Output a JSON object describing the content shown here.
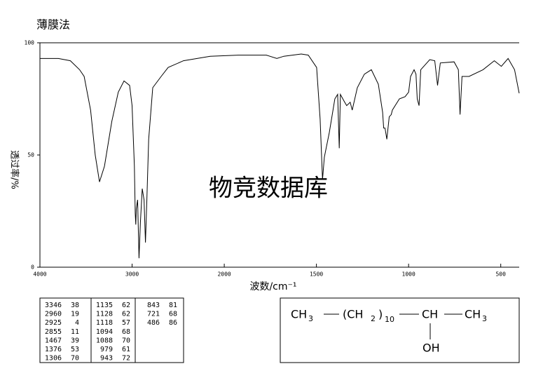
{
  "chart_data": {
    "type": "line",
    "title": "薄膜法",
    "ylabel": "透过率/%",
    "xlabel": "波数/cm⁻¹",
    "xlim": [
      4000,
      400
    ],
    "xticks": [
      4000,
      3000,
      2000,
      1500,
      1000,
      500
    ],
    "x_scale_break": 2000,
    "x_scale_factor": 2,
    "ylim": [
      0,
      100
    ],
    "yticks": [
      0,
      50,
      100
    ],
    "color": "#000000",
    "x": [
      4000,
      3800,
      3670,
      3570,
      3520,
      3450,
      3400,
      3354,
      3300,
      3220,
      3150,
      3088,
      3027,
      3000,
      2975,
      2966,
      2960,
      2955,
      2940,
      2925,
      2910,
      2890,
      2870,
      2855,
      2840,
      2820,
      2776,
      2685,
      2609,
      2442,
      2153,
      1924,
      1772,
      1715,
      1677,
      1582,
      1544,
      1499,
      1480,
      1467,
      1457,
      1430,
      1400,
      1385,
      1376,
      1370,
      1350,
      1336,
      1317,
      1306,
      1278,
      1240,
      1202,
      1164,
      1141,
      1135,
      1128,
      1118,
      1105,
      1094,
      1088,
      1050,
      1019,
      1000,
      989,
      970,
      960,
      953,
      943,
      934,
      885,
      858,
      843,
      828,
      753,
      730,
      721,
      710,
      672,
      596,
      535,
      497,
      460,
      425,
      400
    ],
    "values": [
      93,
      93,
      92,
      88,
      85,
      70,
      50,
      38,
      45,
      65,
      78,
      83,
      81,
      72,
      45,
      24,
      19,
      26,
      30,
      4,
      20,
      35,
      30,
      11,
      30,
      57,
      80,
      85,
      89,
      92,
      94,
      94.5,
      94.5,
      93,
      94,
      95,
      94.5,
      89,
      66,
      39,
      49,
      60,
      75,
      77,
      53,
      77,
      74,
      72,
      73.5,
      70,
      80,
      86,
      88,
      81.5,
      69,
      62,
      62,
      57,
      67,
      68,
      70,
      75,
      76,
      78,
      85,
      88,
      86,
      75,
      72,
      88,
      92.5,
      92,
      81,
      91,
      91.5,
      88,
      68,
      85,
      85,
      88,
      92,
      89.5,
      93,
      88,
      77.5
    ]
  },
  "watermark": "物竞数据库",
  "peak_table": [
    [
      [
        3346,
        38
      ],
      [
        2960,
        19
      ],
      [
        2925,
        4
      ],
      [
        2855,
        11
      ],
      [
        1467,
        39
      ],
      [
        1376,
        53
      ],
      [
        1306,
        70
      ]
    ],
    [
      [
        1135,
        62
      ],
      [
        1128,
        62
      ],
      [
        1118,
        57
      ],
      [
        1094,
        68
      ],
      [
        1088,
        70
      ],
      [
        979,
        61
      ],
      [
        943,
        72
      ]
    ],
    [
      [
        843,
        81
      ],
      [
        721,
        68
      ],
      [
        486,
        86
      ]
    ]
  ],
  "structure": {
    "left": {
      "main": "CH",
      "sub": "3"
    },
    "chain": {
      "open": "(CH",
      "sub": "2",
      "close": ")",
      "count": "10"
    },
    "center": "CH",
    "right": {
      "main": "CH",
      "sub": "3"
    },
    "branch": "OH"
  }
}
